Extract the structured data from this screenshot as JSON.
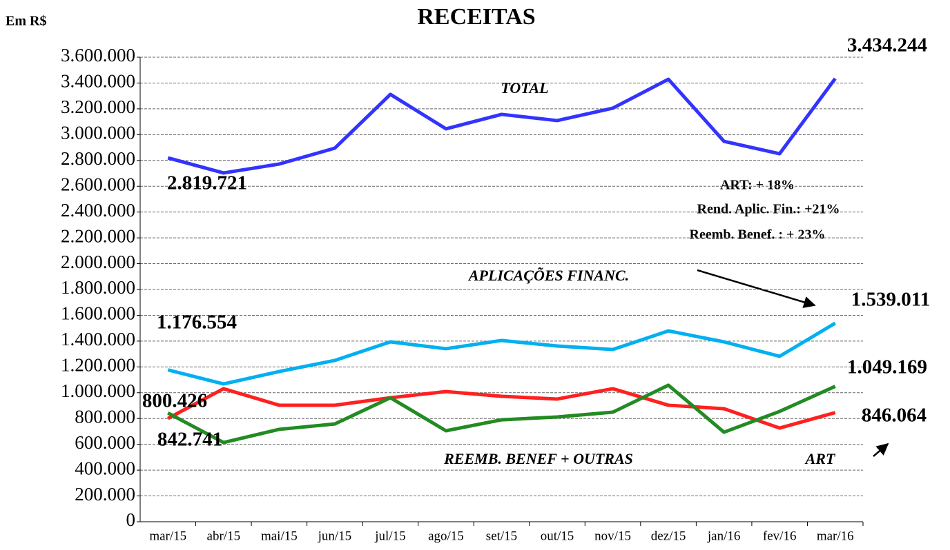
{
  "chart_data": {
    "type": "line",
    "title": "RECEITAS",
    "y_label": "Em R$",
    "categories": [
      "mar/15",
      "abr/15",
      "mai/15",
      "jun/15",
      "jul/15",
      "ago/15",
      "set/15",
      "out/15",
      "nov/15",
      "dez/15",
      "jan/16",
      "fev/16",
      "mar/16"
    ],
    "series": [
      {
        "name": "TOTAL",
        "color": "#3333ff",
        "values": [
          2819721,
          2703000,
          2772000,
          2895000,
          3312000,
          3045000,
          3157000,
          3109000,
          3205000,
          3429000,
          2948000,
          2852000,
          3434244
        ],
        "value_labels": [
          "2.819.721",
          null,
          null,
          null,
          null,
          null,
          null,
          null,
          null,
          null,
          null,
          null,
          "3.434.244"
        ]
      },
      {
        "name": "APLICAÇÕES FINANC.",
        "color": "#00b0f0",
        "values": [
          1176554,
          1068000,
          1164000,
          1250000,
          1394000,
          1341000,
          1405000,
          1362000,
          1335000,
          1479000,
          1394000,
          1282000,
          1539011
        ],
        "value_labels": [
          "1.176.554",
          null,
          null,
          null,
          null,
          null,
          null,
          null,
          null,
          null,
          null,
          null,
          "1.539.011"
        ]
      },
      {
        "name": "ART",
        "color": "#ff2020",
        "values": [
          800426,
          1031000,
          903000,
          903000,
          961000,
          1009000,
          972000,
          951000,
          1031000,
          903000,
          876000,
          726000,
          846064
        ],
        "value_labels": [
          "800.426",
          null,
          null,
          null,
          null,
          null,
          null,
          null,
          null,
          null,
          null,
          null,
          "846.064"
        ]
      },
      {
        "name": "REEMB. BENEF + OUTRAS",
        "color": "#228b22",
        "values": [
          842741,
          614000,
          716000,
          758000,
          961000,
          705000,
          790000,
          812000,
          849000,
          1058000,
          694000,
          855000,
          1049169
        ],
        "value_labels": [
          "842.741",
          null,
          null,
          null,
          null,
          null,
          null,
          null,
          null,
          null,
          null,
          null,
          "1.049.169"
        ]
      }
    ],
    "annotations": [
      "ART: + 18%",
      "Rend. Aplic. Fin.:  +21%",
      "Reemb. Benef. : + 23%"
    ],
    "ylim": [
      0,
      3600000
    ],
    "yticks": [
      0,
      {
        "value": 200000,
        "label": "200.000"
      },
      {
        "value": 400000,
        "label": "400.000"
      },
      {
        "value": 600000,
        "label": "600.000"
      },
      {
        "value": 800000,
        "label": "800.000"
      },
      {
        "value": 1000000,
        "label": "1.000.000"
      },
      {
        "value": 1200000,
        "label": "1.200.000"
      },
      {
        "value": 1400000,
        "label": "1.400.000"
      },
      {
        "value": 1600000,
        "label": "1.600.000"
      },
      {
        "value": 1800000,
        "label": "1.800.000"
      },
      {
        "value": 2000000,
        "label": "2.000.000"
      },
      {
        "value": 2200000,
        "label": "2.200.000"
      },
      {
        "value": 2400000,
        "label": "2.400.000"
      },
      {
        "value": 2600000,
        "label": "2.600.000"
      },
      {
        "value": 2800000,
        "label": "2.800.000"
      },
      {
        "value": 3000000,
        "label": "3.000.000"
      },
      {
        "value": 3200000,
        "label": "3.200.000"
      },
      {
        "value": 3400000,
        "label": "3.400.000"
      },
      {
        "value": 3600000,
        "label": "3.600.000"
      }
    ],
    "grid": true
  }
}
